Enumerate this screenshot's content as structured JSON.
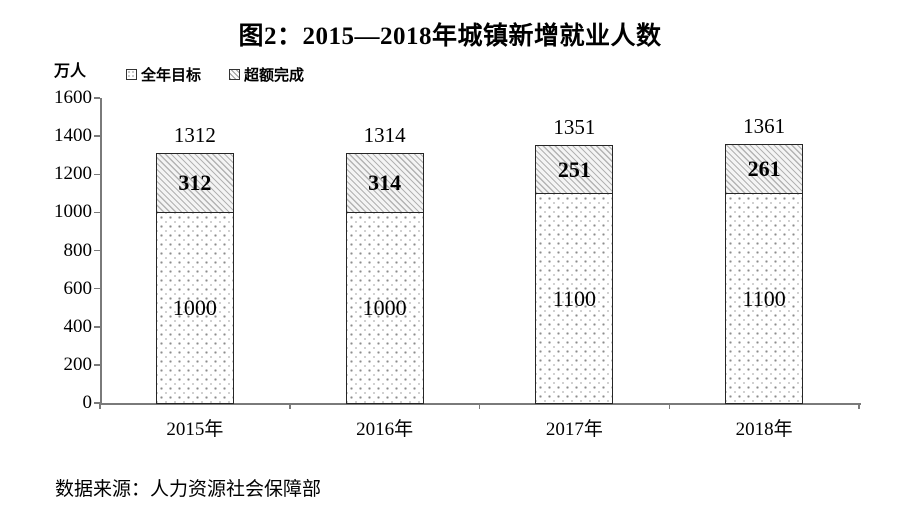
{
  "chart": {
    "title": "图2：2015—2018年城镇新增就业人数",
    "unit_label": "万人",
    "source": "数据来源：人力资源社会保障部"
  },
  "chart_data": {
    "type": "bar",
    "stacked": true,
    "title": "图2：2015—2018年城镇新增就业人数",
    "categories": [
      "2015年",
      "2016年",
      "2017年",
      "2018年"
    ],
    "series": [
      {
        "name": "全年目标",
        "pattern": "dots",
        "values": [
          1000,
          1000,
          1100,
          1100
        ]
      },
      {
        "name": "超额完成",
        "pattern": "diagonal-hatch",
        "values": [
          312,
          314,
          251,
          261
        ]
      }
    ],
    "totals": [
      1312,
      1314,
      1351,
      1361
    ],
    "ylabel": "万人",
    "ylim": [
      0,
      1600
    ],
    "yticks": [
      0,
      200,
      400,
      600,
      800,
      1000,
      1200,
      1400,
      1600
    ],
    "grid": false,
    "legend_position": "top-left",
    "colors": {
      "bar_fill": "#ffffff",
      "dot_pattern": "#8c8c8c",
      "hatch_pattern": "#b3b3b3",
      "bar_border": "#262626",
      "axis": "#7a7a7a",
      "text": "#000000"
    }
  }
}
